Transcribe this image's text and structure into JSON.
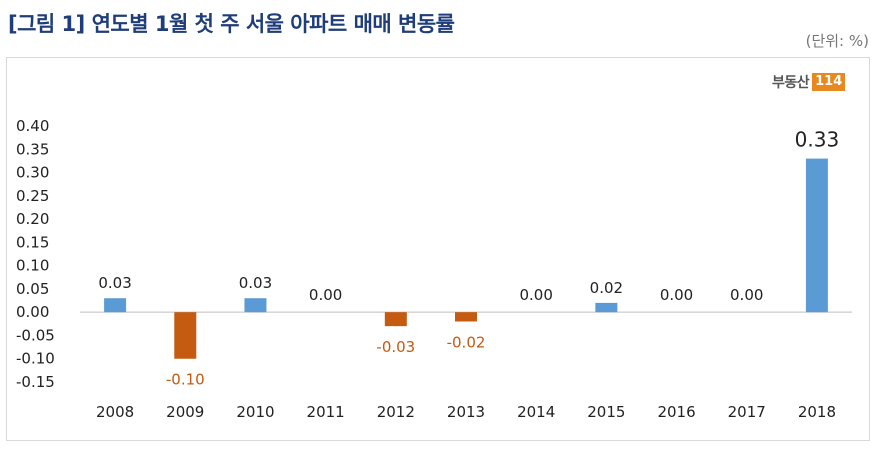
{
  "title": "[그림 1] 연도별 1월 첫 주 서울 아파트 매매 변동률",
  "unit": "(단위: %)",
  "logo": {
    "text": "부동산",
    "box": "114"
  },
  "chart_data": {
    "type": "bar",
    "categories": [
      "2008",
      "2009",
      "2010",
      "2011",
      "2012",
      "2013",
      "2014",
      "2015",
      "2016",
      "2017",
      "2018"
    ],
    "values": [
      0.03,
      -0.1,
      0.03,
      0.0,
      -0.03,
      -0.02,
      0.0,
      0.02,
      0.0,
      0.0,
      0.33
    ],
    "data_labels": [
      "0.03",
      "-0.10",
      "0.03",
      "0.00",
      "-0.03",
      "-0.02",
      "0.00",
      "0.02",
      "0.00",
      "0.00",
      "0.33"
    ],
    "yticks": [
      "0.40",
      "0.35",
      "0.30",
      "0.25",
      "0.20",
      "0.15",
      "0.10",
      "0.05",
      "0.00",
      "-0.05",
      "-0.10",
      "-0.15"
    ],
    "ylim": [
      -0.15,
      0.4
    ],
    "colors": {
      "positive": "#5b9bd5",
      "negative": "#c55a11",
      "axis_text": "#222222"
    },
    "grid": false
  }
}
